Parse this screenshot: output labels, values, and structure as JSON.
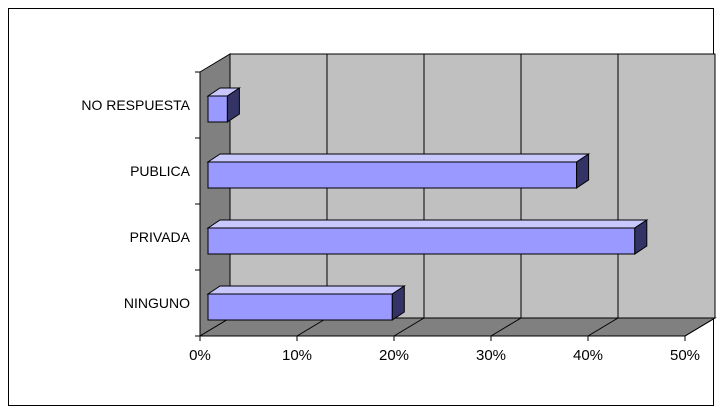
{
  "chart_data": {
    "type": "bar",
    "orientation": "horizontal",
    "style": "3d-clustered-bar",
    "categories": [
      "NO RESPUESTA",
      "PUBLICA",
      "PRIVADA",
      "NINGUNO"
    ],
    "values": [
      2,
      38,
      44,
      19
    ],
    "value_unit": "%",
    "xlim": [
      0,
      50
    ],
    "x_tick_labels": [
      "0%",
      "10%",
      "20%",
      "30%",
      "40%",
      "50%"
    ],
    "grid": true,
    "legend": "none",
    "colors": {
      "bar_front": "#9999ff",
      "bar_top": "#c8c8ff",
      "bar_side": "#333366",
      "wall": "#c0c0c0",
      "floor": "#808080",
      "left_wall": "#808080"
    }
  }
}
